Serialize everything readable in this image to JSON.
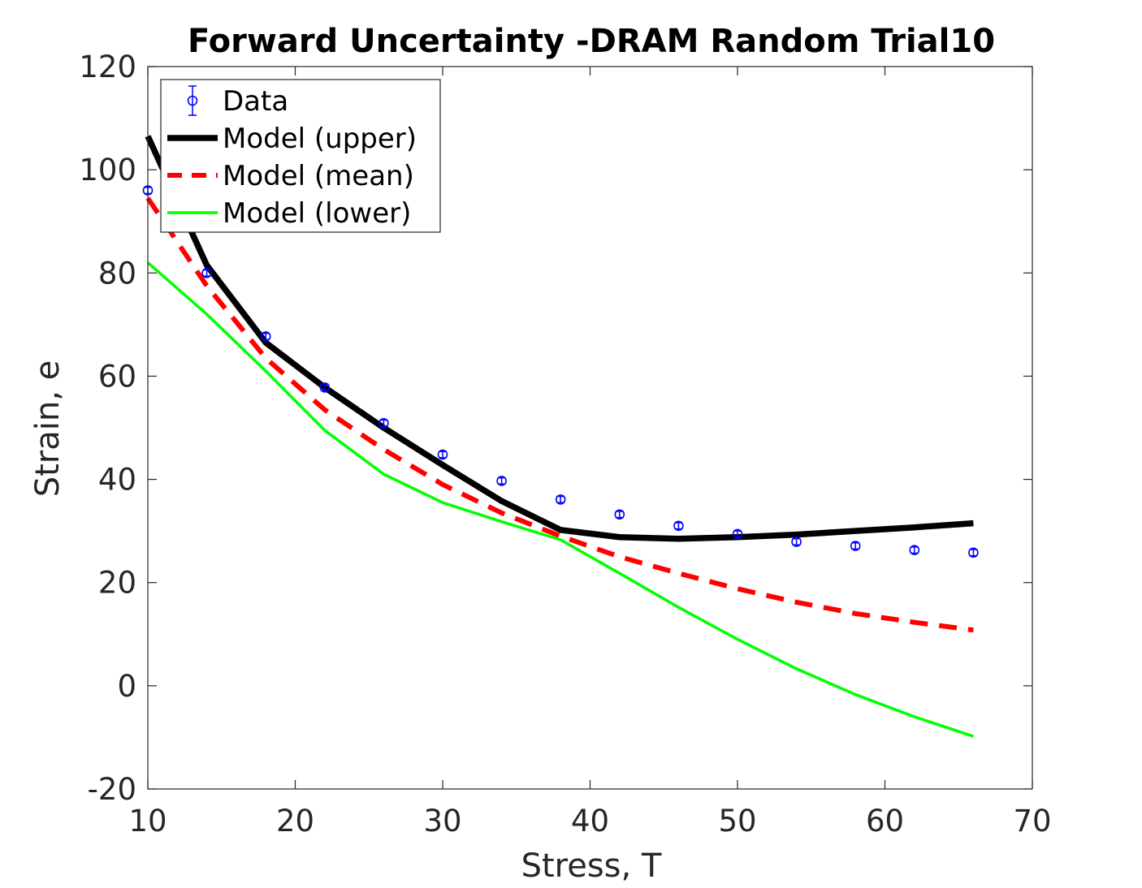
{
  "chart_data": {
    "type": "line",
    "title": "Forward Uncertainty -DRAM Random Trial10",
    "xlabel": "Stress, T",
    "ylabel": "Strain, e",
    "xlim": [
      10,
      70
    ],
    "ylim": [
      -20,
      120
    ],
    "xticks": [
      10,
      20,
      30,
      40,
      50,
      60,
      70
    ],
    "yticks": [
      -20,
      0,
      20,
      40,
      60,
      80,
      100,
      120
    ],
    "grid": false,
    "legend_position": "top-left",
    "colors": {
      "data": "#0000ff",
      "upper": "#000000",
      "mean": "#ff0000",
      "lower": "#00ff00",
      "axes": "#262626"
    },
    "series": [
      {
        "name": "Data",
        "style": "errorbar-circle",
        "x": [
          10,
          14,
          18,
          22,
          26,
          30,
          34,
          38,
          42,
          46,
          50,
          54,
          58,
          62,
          66
        ],
        "y": [
          96,
          80,
          67.7,
          57.8,
          50.9,
          44.8,
          39.7,
          36.1,
          33.2,
          31.0,
          29.4,
          27.9,
          27.1,
          26.3,
          25.8
        ],
        "err": [
          0.6,
          0.6,
          0.6,
          0.6,
          0.6,
          0.6,
          0.6,
          0.6,
          0.6,
          0.6,
          0.6,
          0.6,
          0.6,
          0.6,
          0.6
        ]
      },
      {
        "name": "Model (upper)",
        "style": "solid-thick",
        "x": [
          10,
          14,
          18,
          22,
          26,
          30,
          34,
          38,
          42,
          46,
          50,
          54,
          58,
          62,
          66
        ],
        "y": [
          106.5,
          81.5,
          66.5,
          57.8,
          50.0,
          42.8,
          35.8,
          30.2,
          28.8,
          28.5,
          28.8,
          29.3,
          30.0,
          30.7,
          31.5
        ]
      },
      {
        "name": "Model (mean)",
        "style": "dashed",
        "x": [
          10,
          14,
          18,
          22,
          26,
          30,
          34,
          38,
          42,
          46,
          50,
          54,
          58,
          62,
          66
        ],
        "y": [
          94.5,
          77.5,
          63.5,
          53.5,
          45.8,
          39.0,
          33.5,
          29.0,
          25.0,
          21.8,
          18.8,
          16.2,
          14.0,
          12.3,
          10.8
        ]
      },
      {
        "name": "Model (lower)",
        "style": "solid-thin",
        "x": [
          10,
          14,
          18,
          22,
          26,
          30,
          34,
          38,
          42,
          46,
          50,
          54,
          58,
          62,
          66
        ],
        "y": [
          82.0,
          72.0,
          61.0,
          49.5,
          41.0,
          35.5,
          31.8,
          28.3,
          21.8,
          15.2,
          9.0,
          3.3,
          -1.7,
          -6.0,
          -9.8
        ]
      }
    ]
  }
}
